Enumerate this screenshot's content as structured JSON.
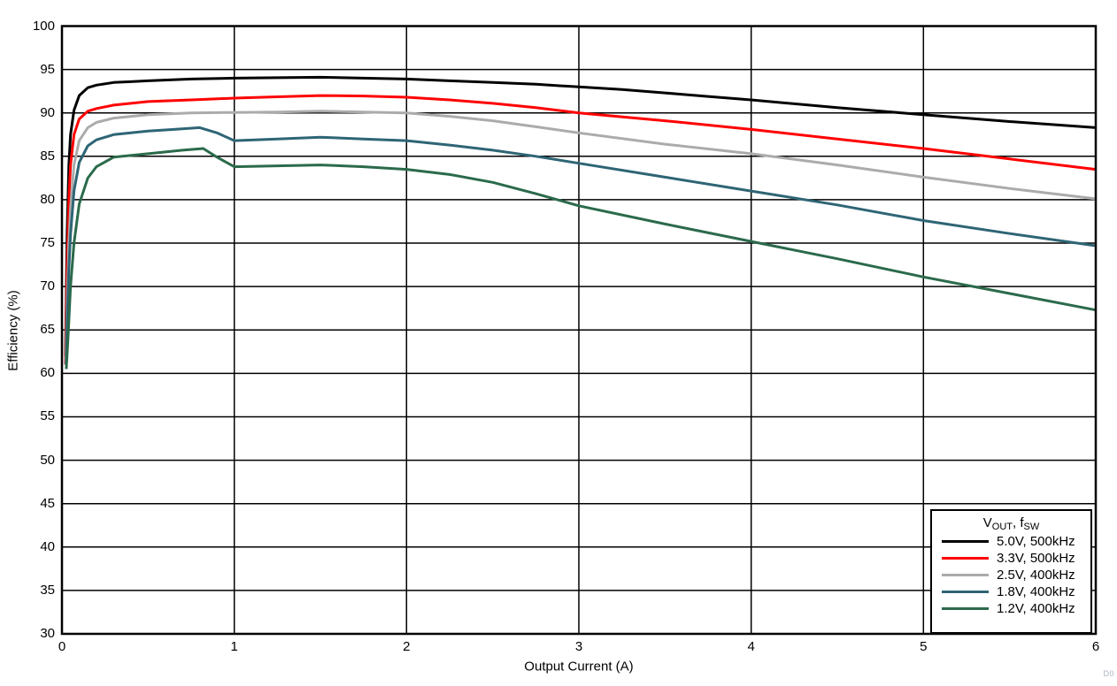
{
  "watermark": "D0",
  "chart_data": {
    "type": "line",
    "title": "",
    "xlabel": "Output Current (A)",
    "ylabel": "Efficiency (%)",
    "xlim": [
      0,
      6
    ],
    "ylim": [
      30,
      100
    ],
    "xticks": [
      0,
      1,
      2,
      3,
      4,
      5,
      6
    ],
    "yticks": [
      30,
      35,
      40,
      45,
      50,
      55,
      60,
      65,
      70,
      75,
      80,
      85,
      90,
      95,
      100
    ],
    "grid": true,
    "grid_color": "#000000",
    "frame_color": "#000000",
    "legend": {
      "position": "bottom-right",
      "title_parts": [
        {
          "text": "V"
        },
        {
          "text": "OUT",
          "sub": true
        },
        {
          "text": ", f"
        },
        {
          "text": "SW",
          "sub": true
        }
      ]
    },
    "series": [
      {
        "name": "5.0V, 500kHz",
        "color": "#000000",
        "points": [
          [
            0.02,
            62
          ],
          [
            0.03,
            76
          ],
          [
            0.04,
            84
          ],
          [
            0.05,
            87.5
          ],
          [
            0.07,
            90.3
          ],
          [
            0.1,
            92.0
          ],
          [
            0.15,
            92.9
          ],
          [
            0.2,
            93.2
          ],
          [
            0.3,
            93.5
          ],
          [
            0.4,
            93.6
          ],
          [
            0.5,
            93.7
          ],
          [
            0.75,
            93.9
          ],
          [
            1.0,
            94.0
          ],
          [
            1.25,
            94.05
          ],
          [
            1.5,
            94.1
          ],
          [
            1.75,
            94.0
          ],
          [
            2.0,
            93.9
          ],
          [
            2.25,
            93.7
          ],
          [
            2.5,
            93.5
          ],
          [
            2.75,
            93.3
          ],
          [
            3.0,
            93.0
          ],
          [
            3.25,
            92.7
          ],
          [
            3.5,
            92.3
          ],
          [
            3.75,
            91.9
          ],
          [
            4.0,
            91.5
          ],
          [
            4.5,
            90.6
          ],
          [
            5.0,
            89.8
          ],
          [
            5.5,
            89.0
          ],
          [
            6.0,
            88.3
          ]
        ]
      },
      {
        "name": "3.3V, 500kHz",
        "color": "#ff0000",
        "points": [
          [
            0.02,
            61
          ],
          [
            0.03,
            72
          ],
          [
            0.04,
            80
          ],
          [
            0.05,
            84
          ],
          [
            0.07,
            87.5
          ],
          [
            0.1,
            89.3
          ],
          [
            0.15,
            90.2
          ],
          [
            0.2,
            90.5
          ],
          [
            0.3,
            90.9
          ],
          [
            0.5,
            91.3
          ],
          [
            0.75,
            91.5
          ],
          [
            1.0,
            91.7
          ],
          [
            1.25,
            91.85
          ],
          [
            1.5,
            92.0
          ],
          [
            1.75,
            91.95
          ],
          [
            2.0,
            91.8
          ],
          [
            2.25,
            91.5
          ],
          [
            2.5,
            91.1
          ],
          [
            2.75,
            90.6
          ],
          [
            3.0,
            90.0
          ],
          [
            3.5,
            89.1
          ],
          [
            4.0,
            88.1
          ],
          [
            4.5,
            87.0
          ],
          [
            5.0,
            85.9
          ],
          [
            5.5,
            84.7
          ],
          [
            6.0,
            83.5
          ]
        ]
      },
      {
        "name": "2.5V, 400kHz",
        "color": "#ababab",
        "points": [
          [
            0.022,
            61
          ],
          [
            0.03,
            68
          ],
          [
            0.04,
            75
          ],
          [
            0.05,
            79
          ],
          [
            0.07,
            84
          ],
          [
            0.1,
            86.8
          ],
          [
            0.15,
            88.3
          ],
          [
            0.2,
            88.9
          ],
          [
            0.3,
            89.4
          ],
          [
            0.5,
            89.8
          ],
          [
            0.75,
            90.0
          ],
          [
            1.0,
            90.05
          ],
          [
            1.25,
            90.1
          ],
          [
            1.5,
            90.2
          ],
          [
            1.75,
            90.1
          ],
          [
            2.0,
            90.0
          ],
          [
            2.25,
            89.6
          ],
          [
            2.5,
            89.1
          ],
          [
            2.75,
            88.4
          ],
          [
            3.0,
            87.7
          ],
          [
            3.5,
            86.4
          ],
          [
            4.0,
            85.3
          ],
          [
            4.5,
            84.0
          ],
          [
            5.0,
            82.6
          ],
          [
            5.5,
            81.3
          ],
          [
            6.0,
            80.1
          ]
        ]
      },
      {
        "name": "1.8V, 400kHz",
        "color": "#2e6575",
        "points": [
          [
            0.024,
            61
          ],
          [
            0.03,
            66
          ],
          [
            0.04,
            72
          ],
          [
            0.05,
            76
          ],
          [
            0.07,
            81
          ],
          [
            0.1,
            84.3
          ],
          [
            0.15,
            86.2
          ],
          [
            0.2,
            86.9
          ],
          [
            0.3,
            87.5
          ],
          [
            0.5,
            87.9
          ],
          [
            0.65,
            88.1
          ],
          [
            0.8,
            88.3
          ],
          [
            0.9,
            87.7
          ],
          [
            1.0,
            86.8
          ],
          [
            1.25,
            87.0
          ],
          [
            1.5,
            87.2
          ],
          [
            1.75,
            87.0
          ],
          [
            2.0,
            86.8
          ],
          [
            2.25,
            86.3
          ],
          [
            2.5,
            85.7
          ],
          [
            2.75,
            85.0
          ],
          [
            3.0,
            84.2
          ],
          [
            3.5,
            82.6
          ],
          [
            4.0,
            81.0
          ],
          [
            4.5,
            79.4
          ],
          [
            5.0,
            77.6
          ],
          [
            5.5,
            76.1
          ],
          [
            6.0,
            74.7
          ]
        ]
      },
      {
        "name": "1.2V, 400kHz",
        "color": "#2b6a4b",
        "points": [
          [
            0.025,
            60.5
          ],
          [
            0.035,
            64
          ],
          [
            0.05,
            70
          ],
          [
            0.07,
            75
          ],
          [
            0.1,
            79.5
          ],
          [
            0.15,
            82.5
          ],
          [
            0.2,
            83.8
          ],
          [
            0.3,
            84.9
          ],
          [
            0.5,
            85.3
          ],
          [
            0.7,
            85.7
          ],
          [
            0.82,
            85.9
          ],
          [
            0.9,
            84.9
          ],
          [
            1.0,
            83.8
          ],
          [
            1.25,
            83.9
          ],
          [
            1.5,
            84.0
          ],
          [
            1.75,
            83.8
          ],
          [
            2.0,
            83.5
          ],
          [
            2.25,
            82.9
          ],
          [
            2.5,
            82.0
          ],
          [
            2.75,
            80.7
          ],
          [
            3.0,
            79.3
          ],
          [
            3.5,
            77.2
          ],
          [
            4.0,
            75.2
          ],
          [
            4.5,
            73.2
          ],
          [
            5.0,
            71.1
          ],
          [
            5.5,
            69.2
          ],
          [
            6.0,
            67.3
          ]
        ]
      }
    ]
  }
}
